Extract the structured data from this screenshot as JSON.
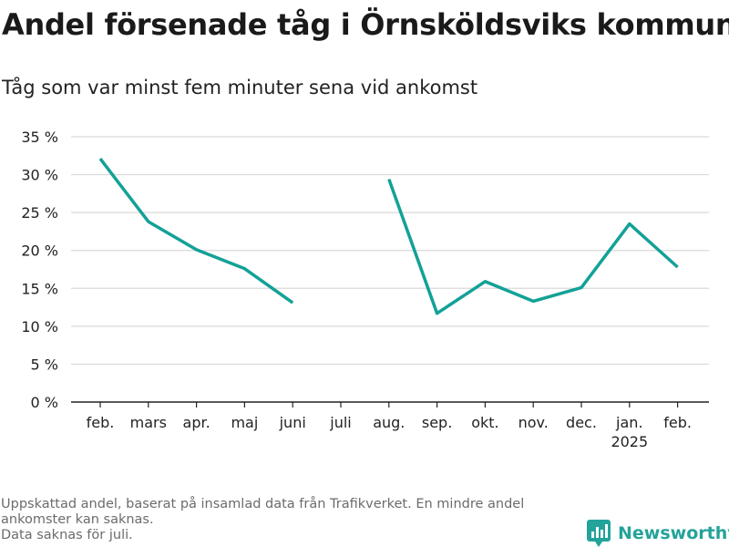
{
  "title": "Andel försenade tåg i Örnsköldsviks kommun",
  "subtitle": "Tåg som var minst fem minuter sena vid ankomst",
  "footer": {
    "lines": [
      "Uppskattad andel, baserat på insamlad data från Trafikverket. En mindre andel",
      "ankomster kan saknas.",
      "Data saknas för juli."
    ]
  },
  "brand": {
    "name": "Newsworthy",
    "icon": "newsworthy-logo-icon",
    "color": "#23a39a"
  },
  "chart_data": {
    "type": "line",
    "categories": [
      "feb.",
      "mars",
      "apr.",
      "maj",
      "juni",
      "juli",
      "aug.",
      "sep.",
      "okt.",
      "nov.",
      "dec.",
      "jan.",
      "feb."
    ],
    "category_sublabels": [
      "",
      "",
      "",
      "",
      "",
      "",
      "",
      "",
      "",
      "",
      "",
      "2025",
      ""
    ],
    "series": [
      {
        "values": [
          32.1,
          23.8,
          20.1,
          17.6,
          13.1,
          null,
          29.4,
          11.7,
          15.9,
          13.3,
          15.1,
          23.5,
          17.8
        ]
      }
    ],
    "ylim": [
      0,
      35
    ],
    "yticks": [
      0,
      5,
      10,
      15,
      20,
      25,
      30,
      35
    ],
    "ytick_labels": [
      "0 %",
      "5 %",
      "10 %",
      "15 %",
      "20 %",
      "25 %",
      "30 %",
      "35 %"
    ],
    "grid": true,
    "line_color": "#13a197",
    "grid_color": "#d9d9d9",
    "axis_color": "#222222"
  }
}
